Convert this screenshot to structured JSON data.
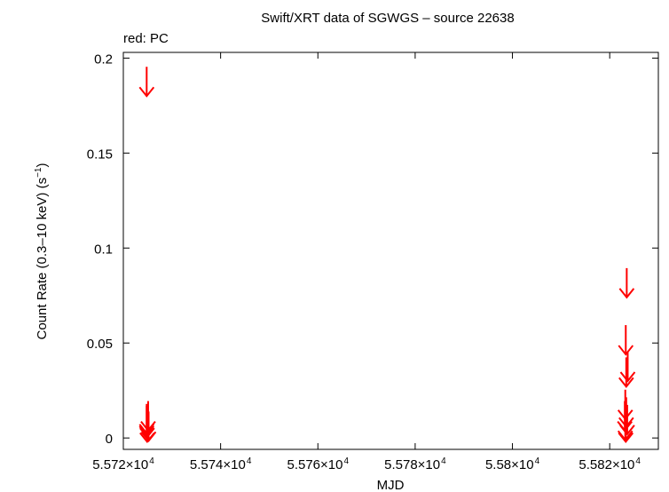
{
  "chart_data": {
    "type": "scatter",
    "title": "Swift/XRT data of SGWGS – source 22638",
    "subtitle": "red: PC",
    "xlabel": "MJD",
    "ylabel": "Count Rate (0.3–10 keV) (s",
    "ylabel_sup": "−1",
    "ylabel_end": ")",
    "xlim": [
      55720,
      55830
    ],
    "ylim": [
      -0.006,
      0.203
    ],
    "x_ticks": [
      55720,
      55740,
      55760,
      55780,
      55800,
      55820
    ],
    "x_tick_labels": [
      {
        "mantissa": "5.572×10",
        "exp": "4"
      },
      {
        "mantissa": "5.574×10",
        "exp": "4"
      },
      {
        "mantissa": "5.576×10",
        "exp": "4"
      },
      {
        "mantissa": "5.578×10",
        "exp": "4"
      },
      {
        "mantissa": "5.58×10",
        "exp": "4"
      },
      {
        "mantissa": "5.582×10",
        "exp": "4"
      }
    ],
    "y_ticks": [
      0,
      0.05,
      0.1,
      0.15,
      0.2
    ],
    "y_tick_labels": [
      "0",
      "0.05",
      "0.1",
      "0.15",
      "0.2"
    ],
    "grid": false,
    "colors": {
      "PC": "#ff0000",
      "axes": "#000000",
      "background": "#ffffff"
    },
    "series": [
      {
        "marker": "upper-limit-arrow",
        "color": "#ff0000",
        "points": [
          {
            "x": 55724.8,
            "y": 0.18
          },
          {
            "x": 55724.8,
            "y": 0.0025
          },
          {
            "x": 55724.8,
            "y": 0.0015
          },
          {
            "x": 55725.1,
            "y": 0.004
          },
          {
            "x": 55724.9,
            "y": 0.0005
          },
          {
            "x": 55725.2,
            "y": -0.0015
          },
          {
            "x": 55724.9,
            "y": -0.002
          },
          {
            "x": 55823.5,
            "y": 0.074
          },
          {
            "x": 55823.3,
            "y": 0.044
          },
          {
            "x": 55823.7,
            "y": 0.03
          },
          {
            "x": 55823.4,
            "y": 0.027
          },
          {
            "x": 55823.2,
            "y": 0.01
          },
          {
            "x": 55823.4,
            "y": 0.006
          },
          {
            "x": 55823.1,
            "y": 0.004
          },
          {
            "x": 55823.6,
            "y": 0.002
          },
          {
            "x": 55823.2,
            "y": -0.001
          },
          {
            "x": 55823.3,
            "y": -0.002
          }
        ]
      }
    ]
  }
}
